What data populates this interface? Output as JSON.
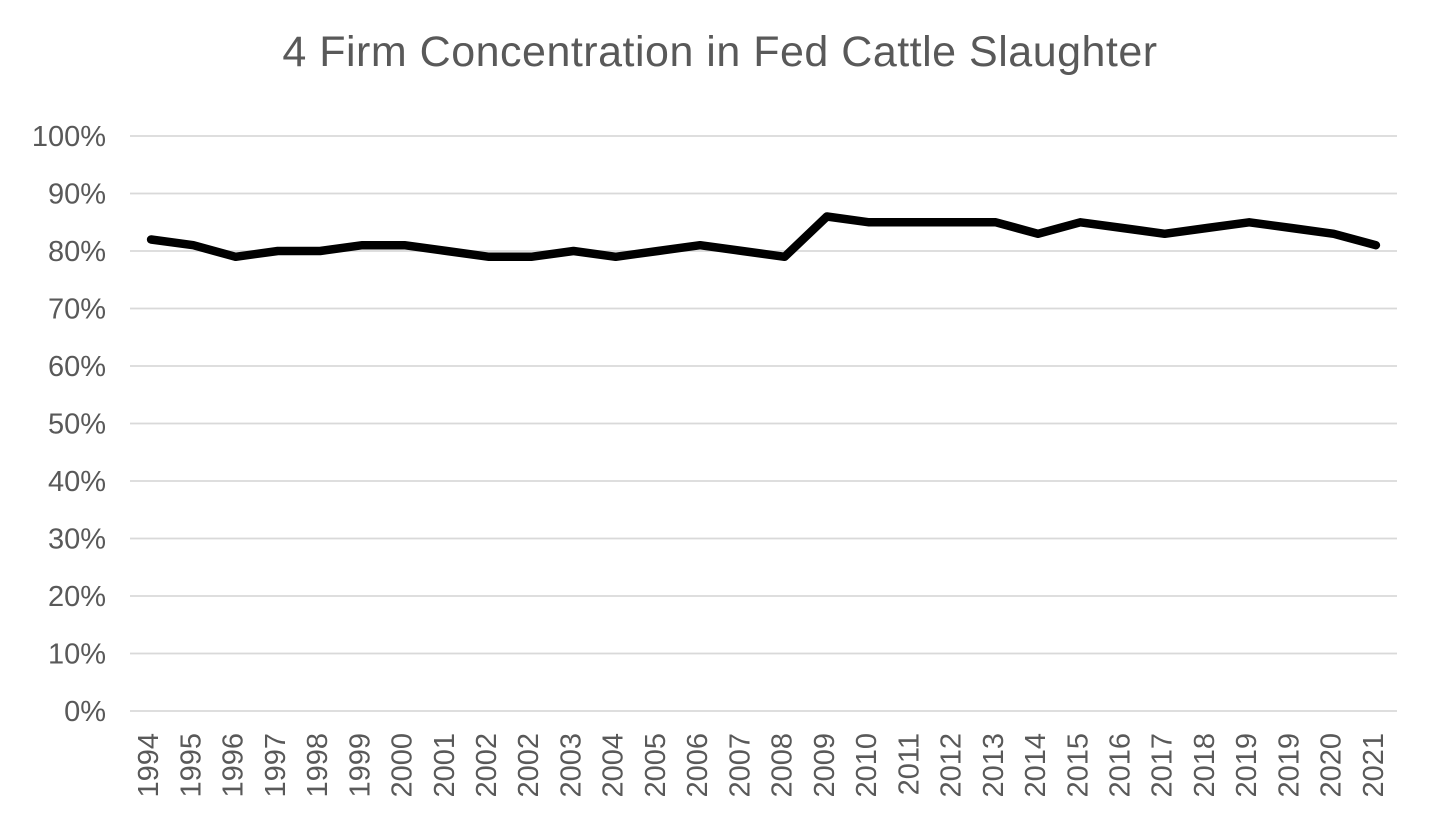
{
  "page": {
    "background": "#ffffff"
  },
  "chart_data": {
    "type": "line",
    "title": "4 Firm Concentration in Fed Cattle Slaughter",
    "categories": [
      "1994",
      "1995",
      "1996",
      "1997",
      "1998",
      "1999",
      "2000",
      "2001",
      "2002",
      "2002",
      "2003",
      "2004",
      "2005",
      "2006",
      "2007",
      "2008",
      "2009",
      "2010",
      "2011",
      "2012",
      "2013",
      "2014",
      "2015",
      "2016",
      "2017",
      "2018",
      "2019",
      "2019",
      "2020",
      "2021"
    ],
    "values": [
      82,
      81,
      79,
      80,
      80,
      81,
      81,
      80,
      79,
      79,
      80,
      79,
      80,
      81,
      80,
      79,
      86,
      85,
      85,
      85,
      85,
      83,
      85,
      84,
      83,
      84,
      85,
      84,
      83,
      81
    ],
    "unit": "%",
    "xlabel": "",
    "ylabel": "",
    "ylim": [
      0,
      100
    ],
    "ytick_step": 10,
    "ytick_labels": [
      "0%",
      "10%",
      "20%",
      "30%",
      "40%",
      "50%",
      "60%",
      "70%",
      "80%",
      "90%",
      "100%"
    ],
    "grid": "horizontal",
    "legend": "none",
    "styles": {
      "line_color": "#000000",
      "line_width": 8.5,
      "grid_color": "#d9d9d9",
      "grid_width": 1.8,
      "text_color": "#595959",
      "title_color": "#595959",
      "tick_font_size": 29,
      "background": "#ffffff"
    }
  }
}
